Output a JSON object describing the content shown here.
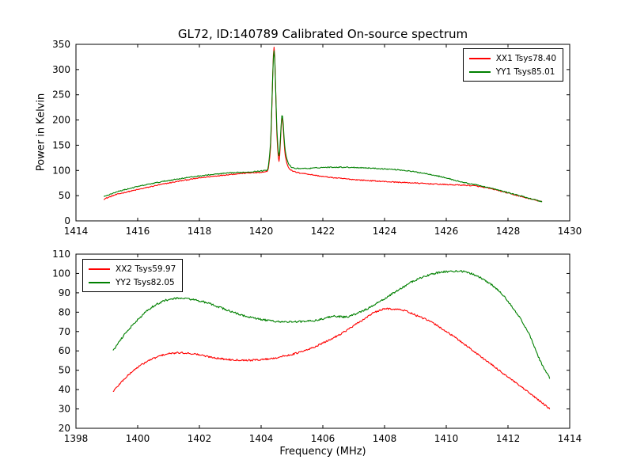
{
  "figure": {
    "title": "GL72, ID:140789 Calibrated On-source spectrum",
    "background": "#ffffff"
  },
  "chart_data": [
    {
      "type": "line",
      "title": "",
      "xlabel": "",
      "ylabel": "Power in Kelvin",
      "xlim": [
        1414,
        1430
      ],
      "ylim": [
        0,
        350
      ],
      "xticks": [
        1414,
        1416,
        1418,
        1420,
        1422,
        1424,
        1426,
        1428,
        1430
      ],
      "yticks": [
        0,
        50,
        100,
        150,
        200,
        250,
        300,
        350
      ],
      "grid": false,
      "legend_position": "upper right",
      "series": [
        {
          "label": "XX1 Tsys78.40",
          "color": "#ff0000",
          "noise": 1.0,
          "x": [
            1414.9,
            1415.3,
            1416,
            1417,
            1418,
            1419,
            1419.6,
            1420.0,
            1420.2,
            1420.3,
            1420.42,
            1420.52,
            1420.58,
            1420.68,
            1420.78,
            1420.9,
            1421.1,
            1421.5,
            1422,
            1423,
            1424,
            1425,
            1426,
            1426.8,
            1427.5,
            1428,
            1428.5,
            1429.1
          ],
          "y": [
            43,
            52,
            62,
            75,
            85,
            92,
            95,
            96,
            98,
            140,
            345,
            160,
            118,
            205,
            130,
            105,
            97,
            93,
            88,
            82,
            78,
            75,
            72,
            70,
            63,
            55,
            47,
            38
          ]
        },
        {
          "label": "YY1 Tsys85.01",
          "color": "#008000",
          "noise": 1.0,
          "x": [
            1414.9,
            1415.3,
            1416,
            1417,
            1418,
            1419,
            1419.6,
            1420.0,
            1420.2,
            1420.3,
            1420.42,
            1420.52,
            1420.58,
            1420.68,
            1420.78,
            1420.9,
            1421.1,
            1421.5,
            1422,
            1422.5,
            1423,
            1424,
            1424.5,
            1425,
            1425.5,
            1426,
            1426.5,
            1427,
            1427.5,
            1428,
            1428.5,
            1429.1
          ],
          "y": [
            48,
            57,
            68,
            80,
            89,
            95,
            97,
            99,
            101,
            150,
            338,
            170,
            128,
            210,
            140,
            112,
            104,
            104,
            106,
            106.5,
            106,
            103,
            101,
            97,
            92,
            85,
            77,
            71,
            64,
            56,
            48,
            38
          ]
        }
      ]
    },
    {
      "type": "line",
      "title": "",
      "xlabel": "Frequency (MHz)",
      "ylabel": "",
      "xlim": [
        1398,
        1414
      ],
      "ylim": [
        20,
        110
      ],
      "xticks": [
        1398,
        1400,
        1402,
        1404,
        1406,
        1408,
        1410,
        1412,
        1414
      ],
      "yticks": [
        20,
        30,
        40,
        50,
        60,
        70,
        80,
        90,
        100,
        110
      ],
      "grid": false,
      "legend_position": "upper left",
      "series": [
        {
          "label": "XX2 Tsys59.97",
          "color": "#ff0000",
          "noise": 0.45,
          "x": [
            1399.2,
            1399.6,
            1400,
            1400.5,
            1401,
            1401.4,
            1401.8,
            1402.3,
            1403,
            1403.6,
            1404.2,
            1404.8,
            1405.4,
            1406,
            1406.6,
            1407.2,
            1407.7,
            1408.1,
            1408.6,
            1409,
            1409.5,
            1410,
            1410.5,
            1411,
            1411.5,
            1412,
            1412.5,
            1413,
            1413.35
          ],
          "y": [
            39,
            46,
            51.5,
            56,
            58.5,
            59,
            58.5,
            57,
            55.5,
            55.2,
            55.8,
            57.5,
            60,
            64,
            69,
            75,
            80,
            81.8,
            81,
            78.5,
            75,
            70,
            64.5,
            58.5,
            52.5,
            46.5,
            40.5,
            34.5,
            30
          ]
        },
        {
          "label": "YY2 Tsys82.05",
          "color": "#008000",
          "noise": 0.5,
          "x": [
            1399.2,
            1399.6,
            1400,
            1400.5,
            1401,
            1401.4,
            1401.8,
            1402.3,
            1403,
            1403.6,
            1404.2,
            1404.8,
            1405.4,
            1406,
            1406.35,
            1406.7,
            1407.2,
            1407.8,
            1408.4,
            1409,
            1409.5,
            1410,
            1410.4,
            1410.8,
            1411.2,
            1411.7,
            1412.2,
            1412.7,
            1413.1,
            1413.35
          ],
          "y": [
            60,
            69,
            76,
            83,
            86.5,
            87.2,
            86.5,
            84.5,
            80.5,
            77.5,
            75.8,
            75,
            75.2,
            76.5,
            78,
            77.5,
            80,
            85,
            91,
            96.5,
            99.5,
            101,
            101.2,
            100,
            97,
            91,
            81.5,
            68,
            53,
            46
          ]
        }
      ]
    }
  ]
}
